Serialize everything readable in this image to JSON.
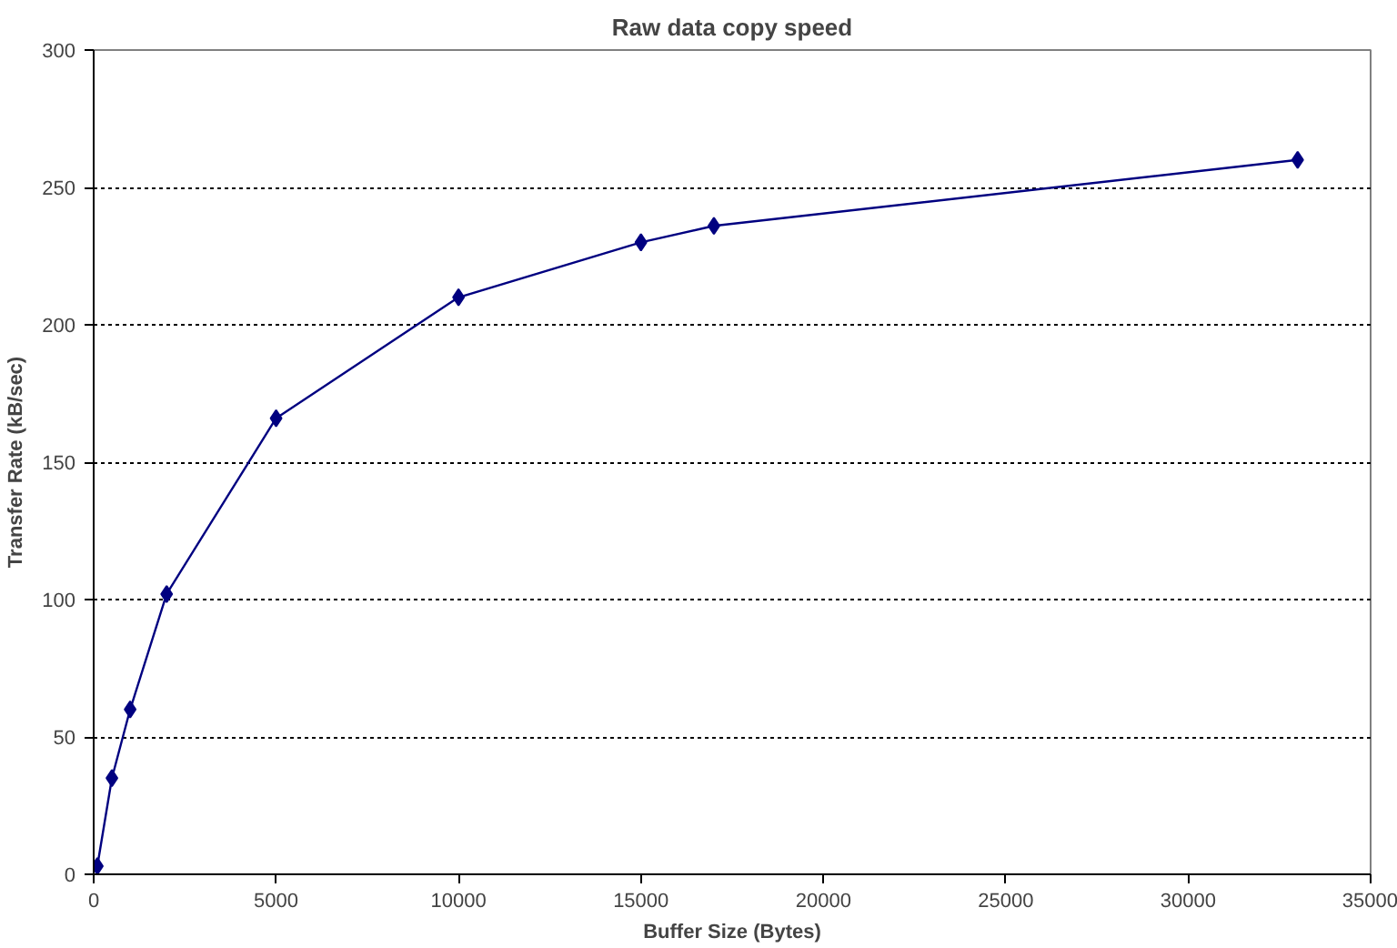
{
  "chart_data": {
    "type": "line",
    "title": "Raw data copy speed",
    "xlabel": "Buffer Size (Bytes)",
    "ylabel": "Transfer Rate (kB/sec)",
    "x": [
      100,
      500,
      1000,
      2000,
      5000,
      10000,
      15000,
      17000,
      33000
    ],
    "series": [
      {
        "color": "#000080",
        "values": [
          3,
          35,
          60,
          102,
          166,
          210,
          230,
          236,
          260
        ]
      }
    ],
    "xlim": [
      0,
      35000
    ],
    "xticks": [
      0,
      5000,
      10000,
      15000,
      20000,
      25000,
      30000,
      35000
    ],
    "ylim": [
      0,
      300
    ],
    "yticks": [
      0,
      50,
      100,
      150,
      200,
      250,
      300
    ],
    "grid": "y",
    "marker": "diamond",
    "line_style": "solid"
  }
}
